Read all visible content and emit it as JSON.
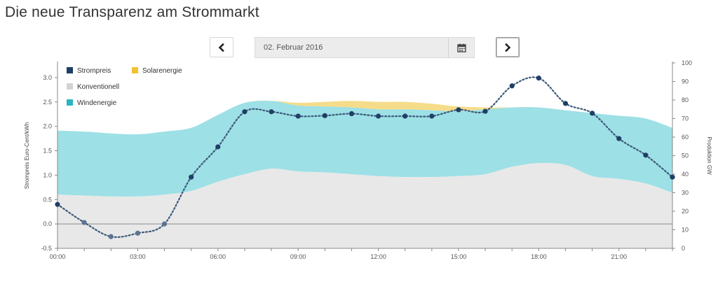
{
  "page": {
    "title": "Die neue Transparenz am Strommarkt"
  },
  "controls": {
    "date_value": "02. Februar 2016",
    "prev_icon": "chevron-left-icon",
    "next_icon": "chevron-right-icon",
    "calendar_icon": "calendar-icon"
  },
  "chart_data": {
    "type": "area",
    "x_ticks": [
      "00:00",
      "03:00",
      "06:00",
      "09:00",
      "12:00",
      "15:00",
      "18:00",
      "21:00"
    ],
    "xlim": [
      0,
      23
    ],
    "ylabel_left": "Strompreis Euro-Cent/kWh",
    "ylabel_right": "Produktion GW",
    "ylim_left": [
      -0.5,
      3.3
    ],
    "ylim_right": [
      0,
      100
    ],
    "yticks_left": [
      "-0.5",
      "0.0",
      "0.5",
      "1.0",
      "1.5",
      "2.0",
      "2.5",
      "3.0"
    ],
    "yticks_left_values": [
      -0.5,
      0,
      0.5,
      1.0,
      1.5,
      2.0,
      2.5,
      3.0
    ],
    "yticks_right": [
      "0",
      "10",
      "20",
      "30",
      "40",
      "50",
      "60",
      "70",
      "80",
      "90",
      "100"
    ],
    "yticks_right_values": [
      0,
      10,
      20,
      30,
      40,
      50,
      60,
      70,
      80,
      90,
      100
    ],
    "legend": [
      {
        "label": "Strompreis",
        "color": "#1f3f66"
      },
      {
        "label": "Solarenergie",
        "color": "#f2c12e"
      },
      {
        "label": "Konventionell",
        "color": "#d3d3d3"
      },
      {
        "label": "Windenergie",
        "color": "#2bb5c1"
      }
    ],
    "x": [
      0,
      1,
      2,
      3,
      4,
      5,
      6,
      7,
      8,
      9,
      10,
      11,
      12,
      13,
      14,
      15,
      16,
      17,
      18,
      19,
      20,
      21,
      22,
      23
    ],
    "series": [
      {
        "name": "Konventionell",
        "color": "#e8e8e8",
        "values": [
          29,
          28.5,
          28,
          28,
          29,
          31,
          36,
          40,
          43,
          41.5,
          41,
          40,
          39,
          38.5,
          38.5,
          39,
          40,
          44,
          46,
          45,
          39,
          37.5,
          35,
          30
        ]
      },
      {
        "name": "Windenergie",
        "color": "#9de0e6",
        "values": [
          34.5,
          34.5,
          34,
          33.5,
          34,
          34,
          36,
          38.5,
          36.5,
          35.5,
          35.5,
          36,
          36,
          36.5,
          36,
          35,
          35,
          32,
          30,
          29.5,
          34,
          34,
          35,
          35
        ]
      },
      {
        "name": "Solarenergie",
        "color": "#f5dc8a",
        "values": [
          0,
          0,
          0,
          0,
          0,
          0,
          0,
          0,
          0,
          1.5,
          2.5,
          3.5,
          4,
          4,
          3.5,
          2.5,
          1,
          0,
          0,
          0,
          0,
          0,
          0,
          0
        ]
      },
      {
        "name": "Strompreis",
        "color": "#1f3f66",
        "values": [
          0.4,
          0.03,
          -0.26,
          -0.19,
          0.0,
          0.96,
          1.58,
          2.3,
          2.3,
          2.21,
          2.22,
          2.26,
          2.21,
          2.21,
          2.21,
          2.34,
          2.31,
          2.83,
          2.99,
          2.47,
          2.27,
          1.75,
          1.41,
          0.96
        ]
      }
    ]
  }
}
